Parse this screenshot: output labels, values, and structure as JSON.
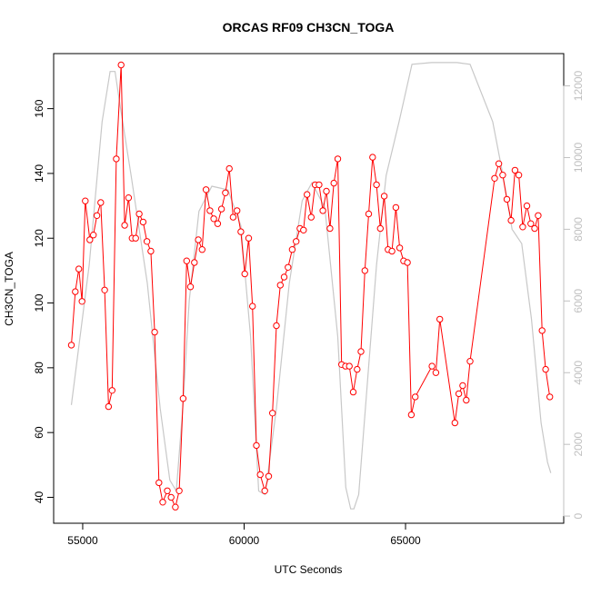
{
  "chart_data": {
    "type": "line",
    "title": "ORCAS RF09 CH3CN_TOGA",
    "xlabel": "UTC Seconds",
    "ylabel": "CH3CN_TOGA",
    "xlim": [
      54100,
      69900
    ],
    "ylim": [
      32,
      177
    ],
    "y2lim": [
      -200,
      12900
    ],
    "x_ticks": [
      55000,
      60000,
      65000
    ],
    "y_ticks": [
      40,
      60,
      80,
      100,
      120,
      140,
      160
    ],
    "y2_ticks": [
      0,
      2000,
      4000,
      6000,
      8000,
      10000,
      12000
    ],
    "grid": false,
    "legend": "none",
    "colors": {
      "primary": "#ff0000",
      "secondary": "#c8c8c8",
      "axis": "#000000",
      "axis2": "#c0c0c0"
    },
    "series": [
      {
        "role": "primary",
        "marker": "open-circle",
        "points": [
          [
            54650,
            87
          ],
          [
            54770,
            103.5
          ],
          [
            54880,
            110.5
          ],
          [
            54980,
            100.5
          ],
          [
            55080,
            131.5
          ],
          [
            55220,
            119.5
          ],
          [
            55330,
            121
          ],
          [
            55440,
            127
          ],
          [
            55560,
            131
          ],
          [
            55680,
            104
          ],
          [
            55800,
            68
          ],
          [
            55910,
            73
          ],
          [
            56040,
            144.5
          ],
          [
            56190,
            173.5
          ],
          [
            56300,
            124
          ],
          [
            56420,
            132.5
          ],
          [
            56530,
            120
          ],
          [
            56640,
            120
          ],
          [
            56750,
            127.5
          ],
          [
            56870,
            125
          ],
          [
            56990,
            119
          ],
          [
            57110,
            116
          ],
          [
            57230,
            91
          ],
          [
            57360,
            44.5
          ],
          [
            57480,
            38.5
          ],
          [
            57620,
            42
          ],
          [
            57740,
            40
          ],
          [
            57870,
            37
          ],
          [
            57990,
            42
          ],
          [
            58110,
            70.5
          ],
          [
            58220,
            113
          ],
          [
            58340,
            105
          ],
          [
            58460,
            112.5
          ],
          [
            58580,
            119.5
          ],
          [
            58700,
            116.5
          ],
          [
            58820,
            135
          ],
          [
            58940,
            128.5
          ],
          [
            59060,
            126
          ],
          [
            59180,
            124.5
          ],
          [
            59300,
            129
          ],
          [
            59420,
            134
          ],
          [
            59540,
            141.5
          ],
          [
            59660,
            126.5
          ],
          [
            59780,
            128.5
          ],
          [
            59900,
            122
          ],
          [
            60020,
            109
          ],
          [
            60140,
            120
          ],
          [
            60260,
            99
          ],
          [
            60380,
            56
          ],
          [
            60500,
            47
          ],
          [
            60640,
            42
          ],
          [
            60760,
            46.5
          ],
          [
            60880,
            66
          ],
          [
            61000,
            93
          ],
          [
            61120,
            105.5
          ],
          [
            61240,
            108
          ],
          [
            61360,
            111
          ],
          [
            61490,
            116.5
          ],
          [
            61610,
            119
          ],
          [
            61730,
            123
          ],
          [
            61840,
            122.5
          ],
          [
            61950,
            133.5
          ],
          [
            62080,
            126.5
          ],
          [
            62200,
            136.5
          ],
          [
            62320,
            136.5
          ],
          [
            62440,
            128.5
          ],
          [
            62550,
            134.5
          ],
          [
            62660,
            123
          ],
          [
            62780,
            137
          ],
          [
            62900,
            144.5
          ],
          [
            63020,
            81
          ],
          [
            63140,
            80.5
          ],
          [
            63260,
            80.5
          ],
          [
            63380,
            72.5
          ],
          [
            63500,
            79.5
          ],
          [
            63620,
            85
          ],
          [
            63740,
            110
          ],
          [
            63860,
            127.5
          ],
          [
            63980,
            145
          ],
          [
            64100,
            136.5
          ],
          [
            64220,
            123
          ],
          [
            64340,
            133
          ],
          [
            64460,
            116.5
          ],
          [
            64580,
            116
          ],
          [
            64700,
            129.5
          ],
          [
            64820,
            117
          ],
          [
            64940,
            113
          ],
          [
            65060,
            112.5
          ],
          [
            65180,
            65.5
          ],
          [
            65300,
            71
          ],
          [
            65820,
            80.5
          ],
          [
            65940,
            78.5
          ],
          [
            66060,
            95
          ],
          [
            66530,
            63
          ],
          [
            66650,
            72
          ],
          [
            66770,
            74.5
          ],
          [
            66880,
            70
          ],
          [
            67000,
            82
          ],
          [
            67760,
            138.5
          ],
          [
            67890,
            143
          ],
          [
            68010,
            139.5
          ],
          [
            68140,
            132
          ],
          [
            68270,
            125.5
          ],
          [
            68390,
            141
          ],
          [
            68510,
            139.5
          ],
          [
            68630,
            123.5
          ],
          [
            68760,
            130
          ],
          [
            68880,
            124.5
          ],
          [
            69000,
            123
          ],
          [
            69110,
            127
          ],
          [
            69230,
            91.5
          ],
          [
            69340,
            79.5
          ],
          [
            69470,
            71
          ]
        ]
      },
      {
        "role": "secondary",
        "points": [
          [
            54650,
            3100
          ],
          [
            55200,
            7000
          ],
          [
            55600,
            11000
          ],
          [
            55850,
            12400
          ],
          [
            56000,
            12400
          ],
          [
            56150,
            11500
          ],
          [
            56500,
            9500
          ],
          [
            57000,
            6500
          ],
          [
            57400,
            3000
          ],
          [
            57700,
            1000
          ],
          [
            57900,
            700
          ],
          [
            58100,
            3000
          ],
          [
            58300,
            6000
          ],
          [
            58600,
            8500
          ],
          [
            59000,
            9200
          ],
          [
            59500,
            9100
          ],
          [
            59900,
            8100
          ],
          [
            60200,
            5000
          ],
          [
            60450,
            700
          ],
          [
            60650,
            600
          ],
          [
            61000,
            3000
          ],
          [
            61400,
            6500
          ],
          [
            61800,
            8800
          ],
          [
            62100,
            9300
          ],
          [
            62500,
            8600
          ],
          [
            62900,
            5000
          ],
          [
            63150,
            800
          ],
          [
            63300,
            200
          ],
          [
            63400,
            200
          ],
          [
            63550,
            600
          ],
          [
            63800,
            3500
          ],
          [
            64100,
            7000
          ],
          [
            64400,
            9500
          ],
          [
            64800,
            11000
          ],
          [
            65200,
            12600
          ],
          [
            65800,
            12650
          ],
          [
            66600,
            12650
          ],
          [
            67000,
            12600
          ],
          [
            67700,
            11000
          ],
          [
            68000,
            9600
          ],
          [
            68300,
            8000
          ],
          [
            68600,
            7600
          ],
          [
            68900,
            5500
          ],
          [
            69200,
            2600
          ],
          [
            69400,
            1500
          ],
          [
            69500,
            1200
          ]
        ]
      }
    ]
  }
}
